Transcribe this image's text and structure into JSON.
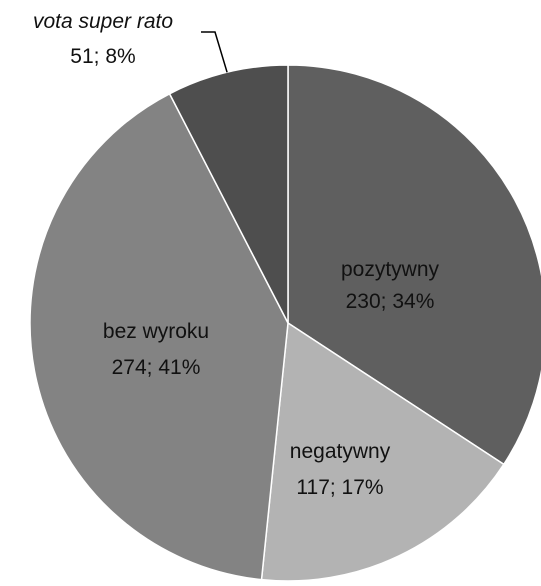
{
  "chart_data": {
    "type": "pie",
    "title": "",
    "slices": [
      {
        "label": "pozytywny",
        "value": 230,
        "percent": "34%",
        "value_text": "230; 34%",
        "color": "#5f5f5f"
      },
      {
        "label": "negatywny",
        "value": 117,
        "percent": "17%",
        "value_text": "117; 17%",
        "color": "#b3b3b3"
      },
      {
        "label": "bez wyroku",
        "value": 274,
        "percent": "41%",
        "value_text": "274; 41%",
        "color": "#838383"
      },
      {
        "label": "vota super rato",
        "value": 51,
        "percent": "8%",
        "value_text": "51; 8%",
        "color": "#4e4e4e"
      }
    ],
    "slice_border_color": "#ffffff",
    "leader_line_color": "#000000"
  }
}
